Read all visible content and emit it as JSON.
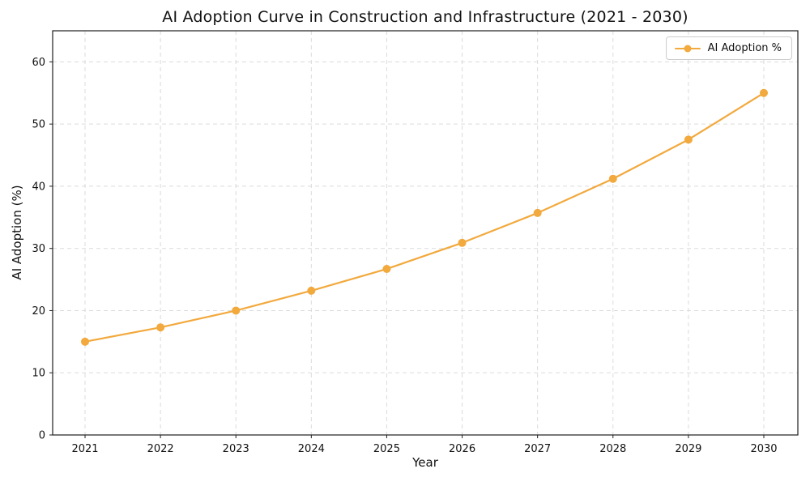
{
  "chart_data": {
    "type": "line",
    "title": "AI Adoption Curve in Construction and Infrastructure (2021 - 2030)",
    "xlabel": "Year",
    "ylabel": "AI Adoption (%)",
    "categories": [
      "2021",
      "2022",
      "2023",
      "2024",
      "2025",
      "2026",
      "2027",
      "2028",
      "2029",
      "2030"
    ],
    "series": [
      {
        "name": "AI Adoption %",
        "values": [
          15.0,
          17.3,
          20.0,
          23.2,
          26.7,
          30.9,
          35.7,
          41.2,
          47.5,
          55.0
        ],
        "color": "#F2A93D",
        "marker": "circle"
      }
    ],
    "ylim": [
      0,
      65
    ],
    "yticks": [
      0,
      10,
      20,
      30,
      40,
      50,
      60
    ],
    "grid": true,
    "grid_style": "dashed",
    "legend_position": "upper-right"
  },
  "colors": {
    "line": "#F2A93D",
    "grid": "#DBDBDB",
    "spine": "#1F1F1F",
    "tick_text": "#111111",
    "legend_border": "#CCCCCC"
  }
}
